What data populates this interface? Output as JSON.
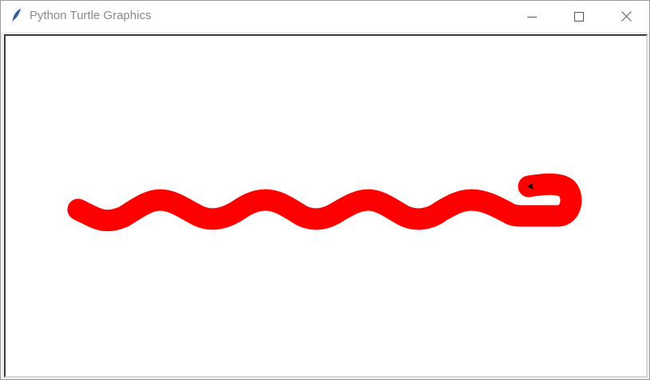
{
  "window": {
    "title": "Python Turtle Graphics",
    "icons": {
      "app": "feather-icon",
      "minimize": "minimize-icon",
      "maximize": "maximize-icon",
      "close": "close-icon"
    }
  },
  "drawing": {
    "pen_color": "#ff0000",
    "turtle_color": "#000000",
    "turtle_shape": "classic-arrow-icon"
  }
}
